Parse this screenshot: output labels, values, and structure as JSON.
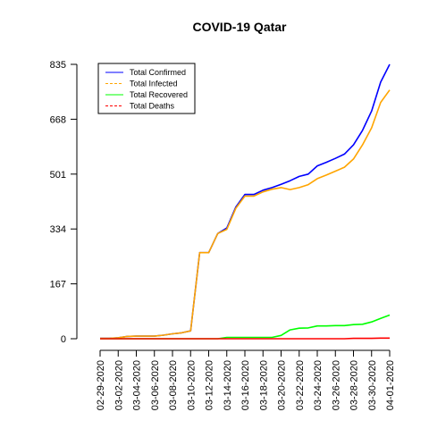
{
  "chart_data": {
    "type": "line",
    "title": "COVID-19 Qatar",
    "xlabel": "",
    "ylabel": "",
    "ylim": [
      0,
      835
    ],
    "y_ticks": [
      0,
      167,
      334,
      501,
      668,
      835
    ],
    "x": [
      "02-29-2020",
      "03-01-2020",
      "03-02-2020",
      "03-03-2020",
      "03-04-2020",
      "03-05-2020",
      "03-06-2020",
      "03-07-2020",
      "03-08-2020",
      "03-09-2020",
      "03-10-2020",
      "03-11-2020",
      "03-12-2020",
      "03-13-2020",
      "03-14-2020",
      "03-15-2020",
      "03-16-2020",
      "03-17-2020",
      "03-18-2020",
      "03-19-2020",
      "03-20-2020",
      "03-21-2020",
      "03-22-2020",
      "03-23-2020",
      "03-24-2020",
      "03-25-2020",
      "03-26-2020",
      "03-27-2020",
      "03-28-2020",
      "03-29-2020",
      "03-30-2020",
      "03-31-2020",
      "04-01-2020"
    ],
    "x_tick_labels": [
      "02-29-2020",
      "03-02-2020",
      "03-04-2020",
      "03-06-2020",
      "03-08-2020",
      "03-10-2020",
      "03-12-2020",
      "03-14-2020",
      "03-16-2020",
      "03-18-2020",
      "03-20-2020",
      "03-22-2020",
      "03-24-2020",
      "03-26-2020",
      "03-28-2020",
      "03-30-2020",
      "04-01-2020"
    ],
    "legend_position": "top-left",
    "series": [
      {
        "name": "Total Confirmed",
        "color": "#0000ff",
        "dash": "solid",
        "values": [
          1,
          1,
          3,
          7,
          8,
          8,
          8,
          11,
          15,
          18,
          24,
          262,
          262,
          320,
          337,
          401,
          439,
          439,
          452,
          460,
          470,
          481,
          494,
          501,
          526,
          537,
          549,
          562,
          590,
          634,
          693,
          781,
          835
        ]
      },
      {
        "name": "Total Infected",
        "color": "#ffa500",
        "dash": "dashed",
        "values": [
          1,
          1,
          3,
          7,
          8,
          8,
          8,
          11,
          15,
          18,
          24,
          262,
          262,
          320,
          333,
          397,
          434,
          434,
          447,
          455,
          460,
          454,
          460,
          469,
          487,
          498,
          510,
          522,
          547,
          590,
          642,
          719,
          757
        ]
      },
      {
        "name": "Total Recovered",
        "color": "#00ff00",
        "dash": "solid",
        "values": [
          0,
          0,
          0,
          0,
          0,
          0,
          0,
          0,
          0,
          0,
          0,
          0,
          0,
          0,
          4,
          4,
          4,
          4,
          4,
          4,
          10,
          27,
          32,
          33,
          39,
          39,
          40,
          40,
          43,
          44,
          51,
          62,
          72
        ]
      },
      {
        "name": "Total Deaths",
        "color": "#ff0000",
        "dash": "dashed",
        "values": [
          0,
          0,
          0,
          0,
          0,
          0,
          0,
          0,
          0,
          0,
          0,
          0,
          0,
          0,
          0,
          0,
          0,
          0,
          0,
          0,
          0,
          0,
          0,
          0,
          0,
          0,
          0,
          0,
          1,
          1,
          1,
          2,
          2
        ]
      }
    ]
  }
}
